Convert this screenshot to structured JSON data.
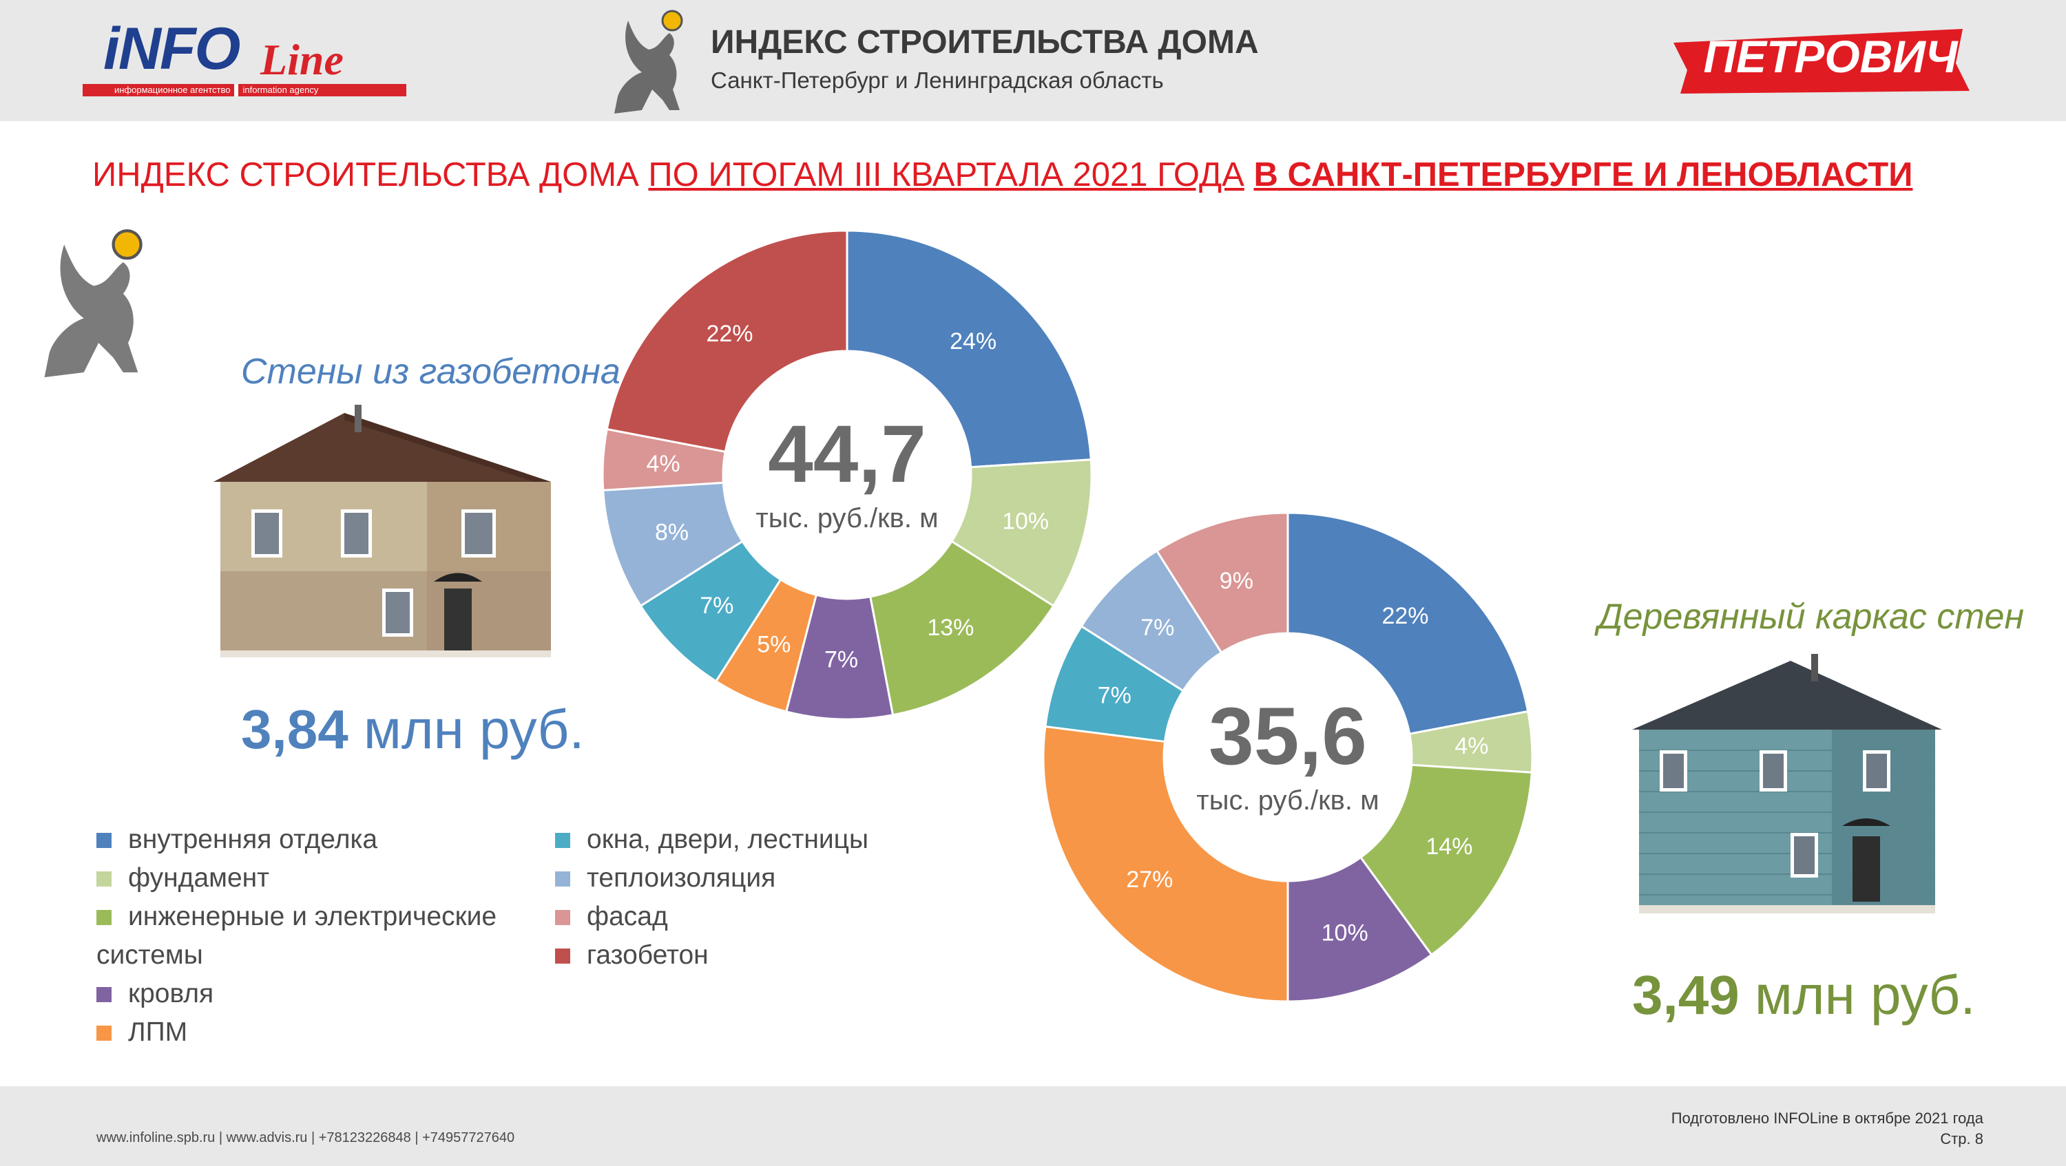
{
  "header": {
    "logo_info": "iNFO",
    "logo_line": "Line",
    "logo_tag_ru": "информационное агентство",
    "logo_tag_en": "information agency",
    "title": "ИНДЕКС СТРОИТЕЛЬСТВА ДОМА",
    "subtitle": "Санкт-Петербург и Ленинградская область",
    "brand": "ПЕТРОВИЧ"
  },
  "headline": {
    "part1": "ИНДЕКС СТРОИТЕЛЬСТВА ДОМА ",
    "part2": "ПО ИТОГАМ III КВАРТАЛА 2021 ГОДА",
    "part3": " ",
    "part4": "В САНКТ-ПЕТЕРБУРГЕ И ЛЕНОБЛАСТИ"
  },
  "left_house": {
    "label": "Стены из газобетона",
    "price_value": "3,84",
    "price_unit": " млн руб."
  },
  "right_house": {
    "label": "Деревянный каркас стен",
    "price_value": "3,49",
    "price_unit": " млн руб."
  },
  "legend": {
    "col1": [
      "внутренняя отделка",
      "фундамент",
      "инженерные и электрические",
      "кровля",
      "ЛПМ"
    ],
    "col1_cont": "системы",
    "col2": [
      "окна, двери, лестницы",
      "теплоизоляция",
      "фасад",
      "газобетон"
    ]
  },
  "colors": {
    "внутренняя отделка": "#4f81bd",
    "фундамент": "#c3d69b",
    "инженерные и электрические системы": "#9bbb59",
    "кровля": "#8064a2",
    "ЛПМ": "#f79646",
    "окна, двери, лестницы": "#4bacc6",
    "теплоизоляция": "#95b3d7",
    "фасад": "#d99694",
    "газобетон": "#c0504d",
    "accent_red": "#e11b22"
  },
  "chart_data": [
    {
      "type": "pie",
      "variant": "donut",
      "title": "Стены из газобетона",
      "center_value": "44,7",
      "center_unit": "тыс. руб./кв. м",
      "slices": [
        {
          "label": "внутренняя отделка",
          "value": 24,
          "text": "24%"
        },
        {
          "label": "фундамент",
          "value": 10,
          "text": "10%"
        },
        {
          "label": "инженерные и электрические системы",
          "value": 13,
          "text": "13%"
        },
        {
          "label": "кровля",
          "value": 7,
          "text": "7%"
        },
        {
          "label": "ЛПМ",
          "value": 5,
          "text": "5%"
        },
        {
          "label": "окна, двери, лестницы",
          "value": 7,
          "text": "7%"
        },
        {
          "label": "теплоизоляция",
          "value": 8,
          "text": "8%"
        },
        {
          "label": "фасад",
          "value": 4,
          "text": "4%"
        },
        {
          "label": "газобетон",
          "value": 22,
          "text": "22%"
        }
      ]
    },
    {
      "type": "pie",
      "variant": "donut",
      "title": "Деревянный каркас стен",
      "center_value": "35,6",
      "center_unit": "тыс. руб./кв. м",
      "slices": [
        {
          "label": "внутренняя отделка",
          "value": 22,
          "text": "22%"
        },
        {
          "label": "фундамент",
          "value": 4,
          "text": "4%"
        },
        {
          "label": "инженерные и электрические системы",
          "value": 14,
          "text": "14%"
        },
        {
          "label": "кровля",
          "value": 10,
          "text": "10%"
        },
        {
          "label": "ЛПМ",
          "value": 27,
          "text": "27%"
        },
        {
          "label": "окна, двери, лестницы",
          "value": 7,
          "text": "7%"
        },
        {
          "label": "теплоизоляция",
          "value": 7,
          "text": "7%"
        },
        {
          "label": "фасад",
          "value": 9,
          "text": "9%"
        }
      ]
    }
  ],
  "footer": {
    "contacts": "www.infoline.spb.ru | www.advis.ru | +78123226848 | +74957727640",
    "prepared": "Подготовлено INFOLine в октябре 2021 года",
    "page": "Стр. 8"
  }
}
